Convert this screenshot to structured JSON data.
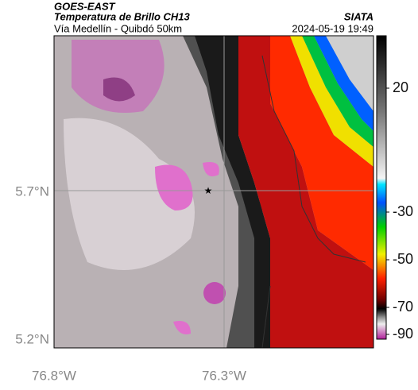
{
  "header": {
    "satellite": "GOES-EAST",
    "product": "Temperatura de Brillo CH13",
    "route": "Vía Medellín - Quibdó 50km",
    "org": "SIATA",
    "timestamp": "2024-05-19 19:49"
  },
  "axes": {
    "lat_labels": [
      "5.7°N",
      "5.2°N"
    ],
    "lon_labels": [
      "76.8°W",
      "76.3°W"
    ]
  },
  "colorbar": {
    "tick_labels": [
      "20",
      "-30",
      "-50",
      "-70",
      "-90"
    ]
  }
}
